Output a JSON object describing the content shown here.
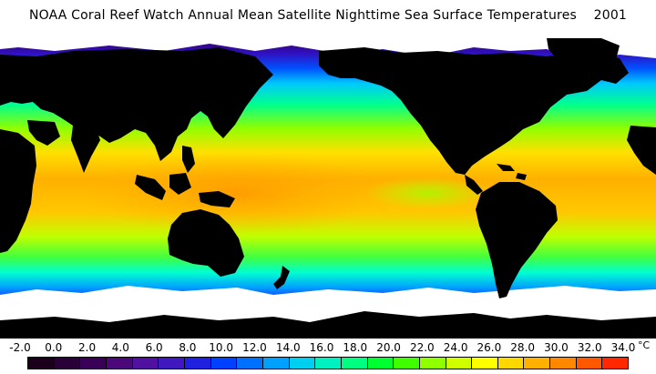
{
  "title": "NOAA Coral Reef Watch Annual Mean Satellite Nighttime Sea Surface Temperatures    2001",
  "colors": {
    "land": "#000000",
    "ice": "#ffffff",
    "background": "#ffffff"
  },
  "scale": {
    "unit": "°C",
    "labels": [
      "-2.0",
      "0.0",
      "2.0",
      "4.0",
      "6.0",
      "8.0",
      "10.0",
      "12.0",
      "14.0",
      "16.0",
      "18.0",
      "20.0",
      "22.0",
      "24.0",
      "26.0",
      "28.0",
      "30.0",
      "32.0",
      "34.0"
    ],
    "swatches": [
      "#1a001a",
      "#2a0038",
      "#3a0058",
      "#4a0878",
      "#5010a0",
      "#4018c0",
      "#2020e0",
      "#0040ff",
      "#0070ff",
      "#00a0ff",
      "#00d0f0",
      "#00f0c0",
      "#00ff80",
      "#00ff30",
      "#40ff00",
      "#90ff00",
      "#d0ff00",
      "#ffff00",
      "#ffd800",
      "#ffb000",
      "#ff8800",
      "#ff5800",
      "#ff2800"
    ]
  }
}
